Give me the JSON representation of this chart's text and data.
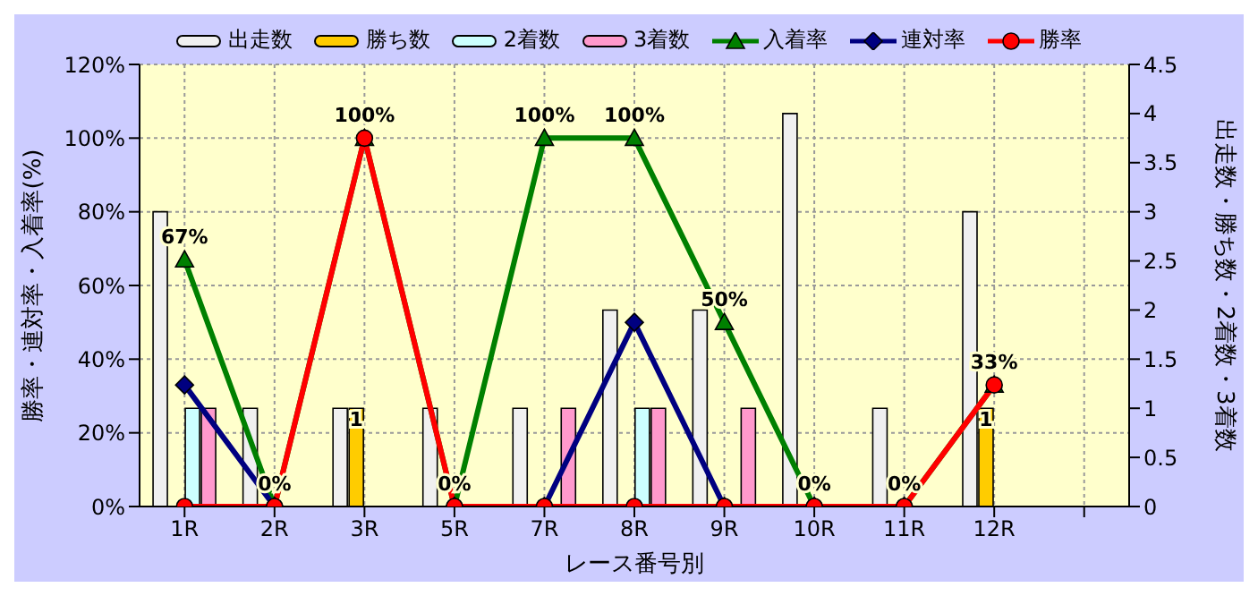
{
  "chart_data": {
    "type": "bar",
    "xlabel": "レース番号別",
    "ylabel": "勝率・連対率・入着率(%)",
    "y2label": "出走数・勝ち数・2着数・3着数",
    "categories": [
      "1R",
      "2R",
      "3R",
      "5R",
      "7R",
      "8R",
      "9R",
      "10R",
      "11R",
      "12R",
      null
    ],
    "ylim": [
      0,
      120
    ],
    "yticks": [
      {
        "value": 0,
        "label": "0%"
      },
      {
        "value": 20,
        "label": "20%"
      },
      {
        "value": 40,
        "label": "40%"
      },
      {
        "value": 60,
        "label": "60%"
      },
      {
        "value": 80,
        "label": "80%"
      },
      {
        "value": 100,
        "label": "100%"
      },
      {
        "value": 120,
        "label": "120%"
      }
    ],
    "y2lim": [
      0,
      4.5
    ],
    "y2ticks": [
      0,
      0.5,
      1,
      1.5,
      2,
      2.5,
      3,
      3.5,
      4,
      4.5
    ],
    "grid": true,
    "legend": "top",
    "series": [
      {
        "name": "出走数",
        "axis": "y2",
        "color": "#f0f0f0",
        "values": [
          3,
          1,
          1,
          1,
          1,
          2,
          2,
          4,
          1,
          3,
          null
        ]
      },
      {
        "name": "勝ち数",
        "axis": "y2",
        "color": "#ffcc00",
        "values": [
          0,
          0,
          1,
          0,
          0,
          0,
          0,
          0,
          0,
          1,
          null
        ],
        "value_labels": [
          null,
          null,
          "1",
          null,
          null,
          null,
          null,
          null,
          null,
          "1",
          null
        ]
      },
      {
        "name": "2着数",
        "axis": "y2",
        "color": "#ccffff",
        "values": [
          1,
          0,
          0,
          0,
          0,
          1,
          0,
          0,
          0,
          0,
          null
        ]
      },
      {
        "name": "3着数",
        "axis": "y2",
        "color": "#ff99cc",
        "values": [
          1,
          0,
          0,
          0,
          1,
          1,
          1,
          0,
          0,
          0,
          null
        ]
      },
      {
        "name": "入着率",
        "type": "line",
        "color": "#008000",
        "marker": "triangle",
        "values": [
          67,
          0,
          100,
          0,
          100,
          100,
          50,
          0,
          0,
          33,
          null
        ],
        "value_labels": [
          "67%",
          "0%",
          "100%",
          "0%",
          "100%",
          "100%",
          "50%",
          "0%",
          "0%",
          "33%",
          null
        ]
      },
      {
        "name": "連対率",
        "type": "line",
        "color": "#000080",
        "marker": "diamond",
        "values": [
          33,
          0,
          null,
          0,
          0,
          50,
          0,
          0,
          0,
          null,
          null
        ]
      },
      {
        "name": "勝率",
        "type": "line",
        "color": "#ff0000",
        "marker": "circle",
        "values": [
          0,
          0,
          100,
          0,
          0,
          0,
          0,
          0,
          0,
          33,
          null
        ]
      }
    ]
  }
}
